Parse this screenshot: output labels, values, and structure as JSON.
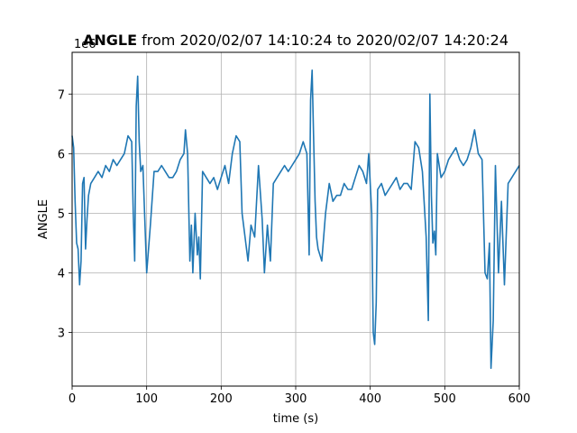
{
  "chart_data": {
    "type": "line",
    "title_bold": "ANGLE",
    "title_rest": " from 2020/02/07 14:10:24 to 2020/02/07 14:20:24",
    "xlabel": "time (s)",
    "ylabel": "ANGLE",
    "y_offset_label": "1e6",
    "xlim": [
      0,
      600
    ],
    "ylim": [
      2.1,
      7.7
    ],
    "x_ticks": [
      0,
      100,
      200,
      300,
      400,
      500,
      600
    ],
    "y_ticks": [
      3,
      4,
      5,
      6,
      7
    ],
    "grid": true,
    "line_color": "#1f77b4",
    "series": [
      {
        "x": [
          0,
          2,
          4,
          6,
          8,
          10,
          12,
          14,
          16,
          18,
          20,
          22,
          25,
          30,
          35,
          40,
          45,
          50,
          55,
          60,
          65,
          70,
          75,
          80,
          82,
          84,
          86,
          88,
          90,
          92,
          95,
          100,
          105,
          110,
          115,
          120,
          125,
          130,
          135,
          140,
          145,
          150,
          152,
          155,
          158,
          160,
          162,
          165,
          168,
          170,
          172,
          175,
          180,
          185,
          190,
          195,
          200,
          205,
          210,
          215,
          220,
          225,
          228,
          232,
          236,
          240,
          245,
          250,
          255,
          258,
          262,
          266,
          270,
          275,
          280,
          285,
          290,
          295,
          300,
          305,
          310,
          315,
          318,
          320,
          322,
          324,
          326,
          328,
          330,
          335,
          340,
          345,
          350,
          355,
          360,
          365,
          370,
          375,
          380,
          385,
          390,
          395,
          398,
          402,
          404,
          406,
          408,
          410,
          415,
          420,
          425,
          430,
          435,
          440,
          445,
          450,
          455,
          460,
          465,
          470,
          475,
          478,
          480,
          482,
          484,
          486,
          488,
          490,
          495,
          500,
          505,
          510,
          515,
          520,
          525,
          530,
          535,
          540,
          545,
          550,
          554,
          557,
          560,
          562,
          565,
          568,
          572,
          576,
          580,
          585,
          590,
          595,
          600
        ],
        "y": [
          6.3,
          6.1,
          5.2,
          4.5,
          4.4,
          3.8,
          4.2,
          5.5,
          5.6,
          4.4,
          4.9,
          5.3,
          5.5,
          5.6,
          5.7,
          5.6,
          5.8,
          5.7,
          5.9,
          5.8,
          5.9,
          6.0,
          6.3,
          6.2,
          5.0,
          4.2,
          6.8,
          7.3,
          6.2,
          5.7,
          5.8,
          4.0,
          4.8,
          5.7,
          5.7,
          5.8,
          5.7,
          5.6,
          5.6,
          5.7,
          5.9,
          6.0,
          6.4,
          6.0,
          4.2,
          4.8,
          4.0,
          5.0,
          4.3,
          4.6,
          3.9,
          5.7,
          5.6,
          5.5,
          5.6,
          5.4,
          5.6,
          5.8,
          5.5,
          6.0,
          6.3,
          6.2,
          5.0,
          4.6,
          4.2,
          4.8,
          4.6,
          5.8,
          4.9,
          4.0,
          4.8,
          4.2,
          5.5,
          5.6,
          5.7,
          5.8,
          5.7,
          5.8,
          5.9,
          6.0,
          6.2,
          6.0,
          4.3,
          6.9,
          7.4,
          6.3,
          5.2,
          4.6,
          4.4,
          4.2,
          5.0,
          5.5,
          5.2,
          5.3,
          5.3,
          5.5,
          5.4,
          5.4,
          5.6,
          5.8,
          5.7,
          5.5,
          6.0,
          5.0,
          3.0,
          2.8,
          3.5,
          5.4,
          5.5,
          5.3,
          5.4,
          5.5,
          5.6,
          5.4,
          5.5,
          5.5,
          5.4,
          6.2,
          6.1,
          5.7,
          4.6,
          3.2,
          7.0,
          5.3,
          4.5,
          4.7,
          4.3,
          6.0,
          5.6,
          5.7,
          5.9,
          6.0,
          6.1,
          5.9,
          5.8,
          5.9,
          6.1,
          6.4,
          6.0,
          5.9,
          4.0,
          3.9,
          4.5,
          2.4,
          3.2,
          5.8,
          4.0,
          5.2,
          3.8,
          5.5,
          5.6,
          5.7,
          5.8
        ]
      }
    ]
  }
}
